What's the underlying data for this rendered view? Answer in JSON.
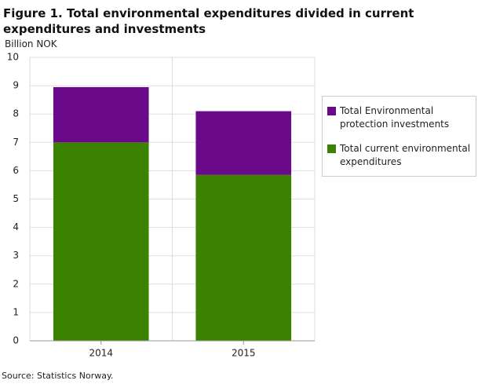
{
  "chart_data": {
    "type": "stacked_bar",
    "title": "Figure 1. Total environmental expenditures divided in current expenditures and investments",
    "y_label": "Billion  NOK",
    "source": "Source: Statistics Norway.",
    "categories": [
      "2014",
      "2015"
    ],
    "series": [
      {
        "name": "Total current environmental expenditures",
        "color": "#3a8200",
        "values": [
          7.0,
          5.85
        ]
      },
      {
        "name": "Total Environmental protection investments",
        "color": "#6a0a8a",
        "values": [
          1.95,
          2.25
        ]
      }
    ],
    "ylim": [
      0,
      10
    ],
    "yticks": [
      0,
      1,
      2,
      3,
      4,
      5,
      6,
      7,
      8,
      9,
      10
    ],
    "grid": true
  }
}
